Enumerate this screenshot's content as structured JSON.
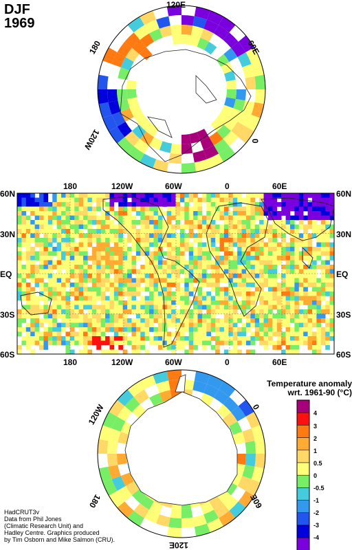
{
  "header": {
    "season": "DJF",
    "year": "1969"
  },
  "arctic_map": {
    "labels": {
      "top": "120E",
      "left_top": "180",
      "right_top": "60E",
      "left_bottom": "120W",
      "right_bottom": "0"
    }
  },
  "global_map": {
    "top_labels": [
      "180",
      "120W",
      "60W",
      "0",
      "60E"
    ],
    "bottom_labels": [
      "180",
      "120W",
      "60W",
      "0",
      "60E"
    ],
    "lat_labels": [
      "60N",
      "30N",
      "EQ",
      "30S",
      "60S"
    ]
  },
  "antarctic_map": {
    "labels": {
      "left_top": "120W",
      "right_top": "0",
      "left_bottom": "180",
      "right_bottom": "60E",
      "bottom": "120E"
    }
  },
  "legend": {
    "title_line1": "Temperature anomaly",
    "title_line2": "wrt. 1961-90  (°C)",
    "labels": [
      "4",
      "3",
      "2",
      "1",
      "0.5",
      "0",
      "-0.5",
      "-1",
      "-2",
      "-3",
      "-4"
    ],
    "colors": [
      "#a8007a",
      "#ff1010",
      "#ff7a10",
      "#ffaa33",
      "#ffd866",
      "#ffff77",
      "#77ee66",
      "#44ccdd",
      "#3399ee",
      "#2255ee",
      "#0000dd",
      "#7a00dd"
    ]
  },
  "credit": {
    "line1": "HadCRUT3v",
    "line2": "Data from Phil Jones",
    "line3": "(Climatic Research Unit) and",
    "line4": "Hadley Centre.  Graphics produced",
    "line5": "by Tim Osborn and Mike Salmon (CRU)."
  }
}
